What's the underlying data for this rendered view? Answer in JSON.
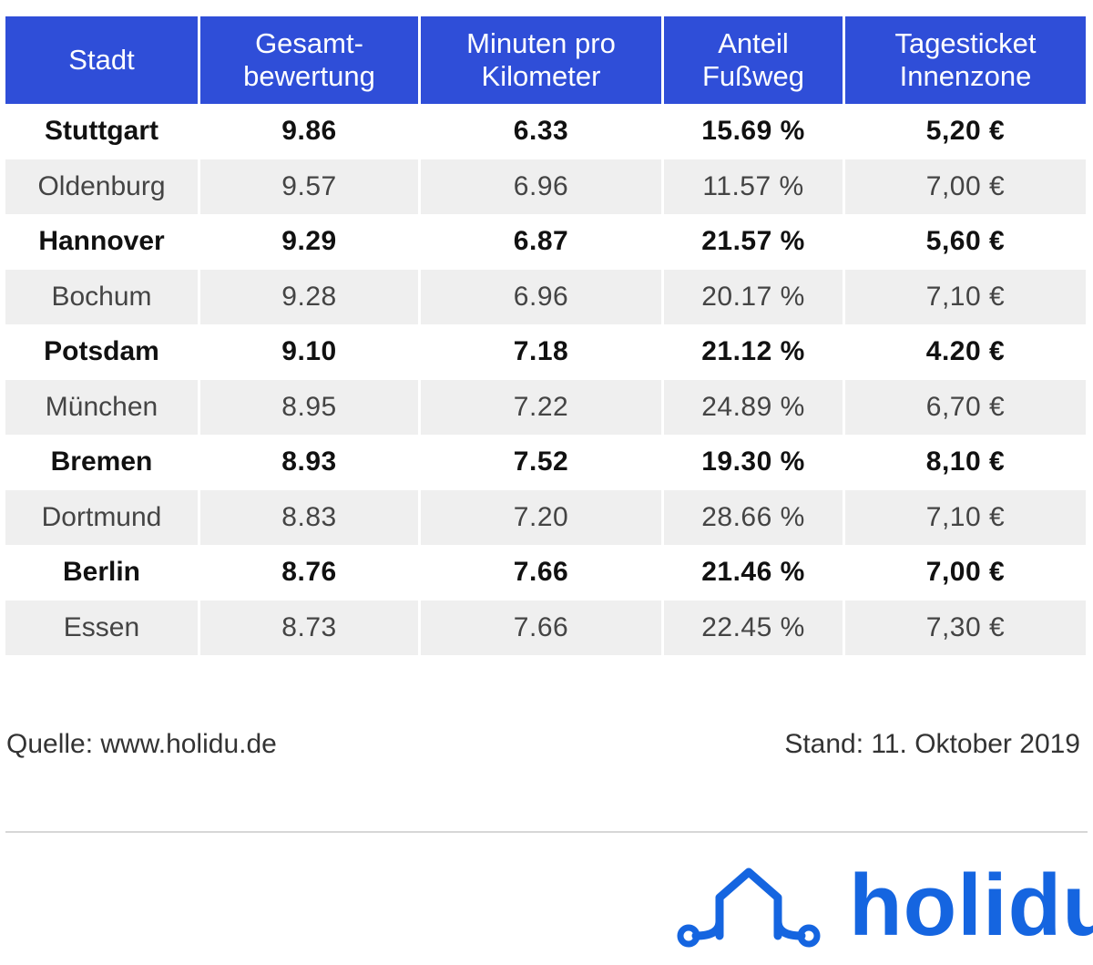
{
  "table": {
    "headers": [
      {
        "line1": "Stadt",
        "line2": ""
      },
      {
        "line1": "Gesamt-",
        "line2": "bewertung"
      },
      {
        "line1": "Minuten pro",
        "line2": "Kilometer"
      },
      {
        "line1": "Anteil",
        "line2": "Fußweg"
      },
      {
        "line1": "Tagesticket",
        "line2": "Innenzone"
      }
    ],
    "rows": [
      {
        "stadt": "Stuttgart",
        "gesamt": "9.86",
        "minuten": "6.33",
        "anteil": "15.69 %",
        "ticket": "5,20 €"
      },
      {
        "stadt": "Oldenburg",
        "gesamt": "9.57",
        "minuten": "6.96",
        "anteil": "11.57 %",
        "ticket": "7,00 €"
      },
      {
        "stadt": "Hannover",
        "gesamt": "9.29",
        "minuten": "6.87",
        "anteil": "21.57 %",
        "ticket": "5,60 €"
      },
      {
        "stadt": "Bochum",
        "gesamt": "9.28",
        "minuten": "6.96",
        "anteil": "20.17 %",
        "ticket": "7,10 €"
      },
      {
        "stadt": "Potsdam",
        "gesamt": "9.10",
        "minuten": "7.18",
        "anteil": "21.12 %",
        "ticket": "4.20 €"
      },
      {
        "stadt": "München",
        "gesamt": "8.95",
        "minuten": "7.22",
        "anteil": "24.89 %",
        "ticket": "6,70 €"
      },
      {
        "stadt": "Bremen",
        "gesamt": "8.93",
        "minuten": "7.52",
        "anteil": "19.30 %",
        "ticket": "8,10 €"
      },
      {
        "stadt": "Dortmund",
        "gesamt": "8.83",
        "minuten": "7.20",
        "anteil": "28.66 %",
        "ticket": "7,10 €"
      },
      {
        "stadt": "Berlin",
        "gesamt": "8.76",
        "minuten": "7.66",
        "anteil": "21.46 %",
        "ticket": "7,00 €"
      },
      {
        "stadt": "Essen",
        "gesamt": "8.73",
        "minuten": "7.66",
        "anteil": "22.45 %",
        "ticket": "7,30 €"
      }
    ]
  },
  "footer": {
    "source": "Quelle: www.holidu.de",
    "stand": "Stand: 11. Oktober 2019"
  },
  "logo": {
    "text": "holidu",
    "color": "#1565e0",
    "icon": "house-icon"
  },
  "colors": {
    "header_bg": "#2f4ed8",
    "header_text": "#ffffff",
    "row_alt_bg": "#efefef"
  },
  "chart_data": {
    "type": "table",
    "columns": [
      "Stadt",
      "Gesamtbewertung",
      "Minuten pro Kilometer",
      "Anteil Fußweg",
      "Tagesticket Innenzone"
    ],
    "rows": [
      [
        "Stuttgart",
        9.86,
        6.33,
        "15.69 %",
        "5,20 €"
      ],
      [
        "Oldenburg",
        9.57,
        6.96,
        "11.57 %",
        "7,00 €"
      ],
      [
        "Hannover",
        9.29,
        6.87,
        "21.57 %",
        "5,60 €"
      ],
      [
        "Bochum",
        9.28,
        6.96,
        "20.17 %",
        "7,10 €"
      ],
      [
        "Potsdam",
        9.1,
        7.18,
        "21.12 %",
        "4.20 €"
      ],
      [
        "München",
        8.95,
        7.22,
        "24.89 %",
        "6,70 €"
      ],
      [
        "Bremen",
        8.93,
        7.52,
        "19.30 %",
        "8,10 €"
      ],
      [
        "Dortmund",
        8.83,
        7.2,
        "28.66 %",
        "7,10 €"
      ],
      [
        "Berlin",
        8.76,
        7.66,
        "21.46 %",
        "7,00 €"
      ],
      [
        "Essen",
        8.73,
        7.66,
        "22.45 %",
        "7,30 €"
      ]
    ]
  }
}
